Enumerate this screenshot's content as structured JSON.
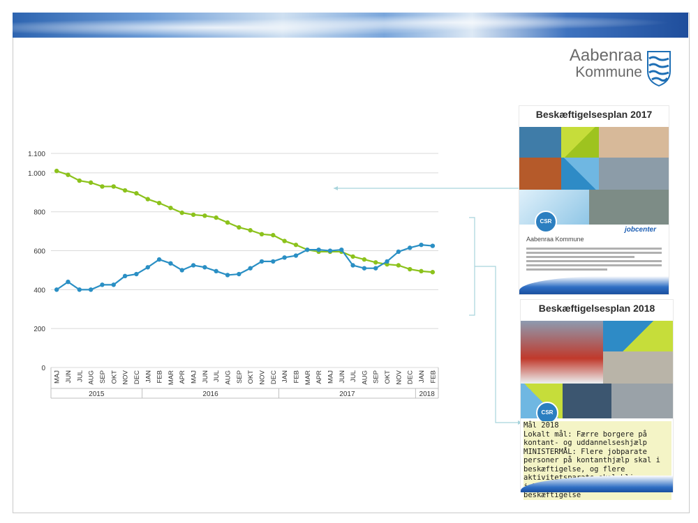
{
  "logo": {
    "line1": "Aabenraa",
    "line2": "Kommune"
  },
  "covers": [
    {
      "title": "Beskæftigelsesplan 2017",
      "org": "Aabenraa Kommune",
      "badge": "CSR",
      "jobcenter": "jobcenter"
    },
    {
      "title": "Beskæftigelsesplan 2018",
      "badge": "CSR"
    }
  ],
  "goal": {
    "heading": "Mål 2018",
    "local": "Lokalt mål: Færre borgere på kontant- og uddannelseshjælp",
    "minister": "MINISTERMÅL: Flere jobparate personer på kontanthjælp skal i beskæftigelse, og flere aktivitetsparate skal blive jobparate eller kommer i beskæftigelse"
  },
  "colors": {
    "green": "#8cc21c",
    "blue": "#2a8fc4",
    "connector": "#a8d4dc"
  },
  "chart_data": {
    "type": "line",
    "categories": [
      "MAJ",
      "JUN",
      "JUL",
      "AUG",
      "SEP",
      "OKT",
      "NOV",
      "DEC",
      "JAN",
      "FEB",
      "MAR",
      "APR",
      "MAJ",
      "JUN",
      "JUL",
      "AUG",
      "SEP",
      "OKT",
      "NOV",
      "DEC",
      "JAN",
      "FEB",
      "MAR",
      "APR",
      "MAJ",
      "JUN",
      "JUL",
      "AUG",
      "SEP",
      "OKT",
      "NOV",
      "DEC",
      "JAN",
      "FEB"
    ],
    "years": [
      {
        "label": "2015",
        "from": 0,
        "to": 7
      },
      {
        "label": "2016",
        "from": 8,
        "to": 19
      },
      {
        "label": "2017",
        "from": 20,
        "to": 31
      },
      {
        "label": "2018",
        "from": 32,
        "to": 33
      }
    ],
    "yticks": [
      0,
      200,
      400,
      600,
      800,
      1000,
      1100
    ],
    "ytick_labels": [
      "0",
      "200",
      "400",
      "600",
      "800",
      "1.000",
      "1.100"
    ],
    "ylim": [
      0,
      1100
    ],
    "grid": true,
    "series": [
      {
        "color": "#8cc21c",
        "values": [
          1010,
          990,
          960,
          950,
          930,
          930,
          910,
          895,
          865,
          845,
          820,
          795,
          785,
          780,
          770,
          745,
          720,
          705,
          685,
          680,
          650,
          630,
          605,
          595,
          595,
          595,
          570,
          555,
          540,
          530,
          525,
          505,
          495,
          490
        ]
      },
      {
        "color": "#2a8fc4",
        "values": [
          400,
          440,
          400,
          400,
          425,
          425,
          470,
          480,
          515,
          555,
          535,
          500,
          525,
          515,
          495,
          475,
          480,
          510,
          545,
          545,
          565,
          575,
          605,
          605,
          600,
          605,
          525,
          510,
          510,
          545,
          595,
          615,
          630,
          625
        ]
      }
    ]
  }
}
